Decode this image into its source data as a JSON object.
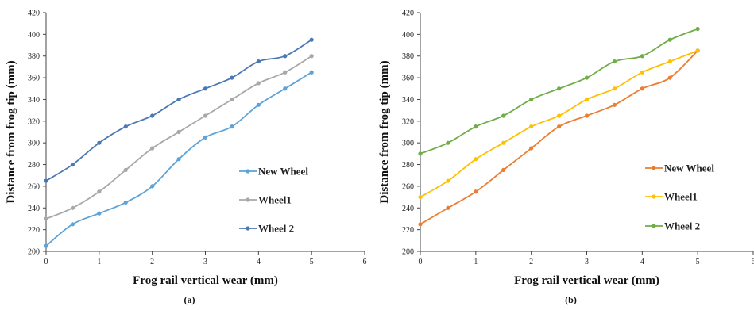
{
  "chart_data": [
    {
      "type": "line",
      "caption": "(a)",
      "xlabel": "Frog rail vertical wear (mm)",
      "ylabel": "Distance from frog tip (mm)",
      "xlim": [
        0,
        6
      ],
      "ylim": [
        200,
        420
      ],
      "x_ticks": [
        "0",
        "1",
        "2",
        "3",
        "4",
        "5",
        "6"
      ],
      "y_ticks": [
        "200",
        "220",
        "240",
        "260",
        "280",
        "300",
        "320",
        "340",
        "360",
        "380",
        "400",
        "420"
      ],
      "grid": false,
      "legend_position": "right",
      "x": [
        0,
        0.5,
        1,
        1.5,
        2,
        2.5,
        3,
        3.5,
        4,
        4.5,
        5
      ],
      "series": [
        {
          "name": "New Wheel",
          "color": "#5ba3d9",
          "values": [
            205,
            225,
            235,
            245,
            260,
            285,
            305,
            315,
            335,
            350,
            365
          ]
        },
        {
          "name": "Wheel1",
          "color": "#a8a8a8",
          "values": [
            230,
            240,
            255,
            275,
            295,
            310,
            325,
            340,
            355,
            365,
            380
          ]
        },
        {
          "name": "Wheel 2",
          "color": "#4a78b5",
          "values": [
            265,
            280,
            300,
            315,
            325,
            340,
            350,
            360,
            375,
            380,
            395
          ]
        }
      ]
    },
    {
      "type": "line",
      "caption": "(b)",
      "xlabel": "Frog rail vertical wear (mm)",
      "ylabel": "Distance from frog tip (mm)",
      "xlim": [
        0,
        6
      ],
      "ylim": [
        200,
        420
      ],
      "x_ticks": [
        "0",
        "1",
        "2",
        "3",
        "4",
        "5",
        "6"
      ],
      "y_ticks": [
        "200",
        "220",
        "240",
        "260",
        "280",
        "300",
        "320",
        "340",
        "360",
        "380",
        "400",
        "420"
      ],
      "grid": false,
      "legend_position": "right",
      "x": [
        0,
        0.5,
        1,
        1.5,
        2,
        2.5,
        3,
        3.5,
        4,
        4.5,
        5
      ],
      "series": [
        {
          "name": "New Wheel",
          "color": "#ed7d31",
          "values": [
            225,
            240,
            255,
            275,
            295,
            315,
            325,
            335,
            350,
            360,
            385
          ]
        },
        {
          "name": "Wheel1",
          "color": "#ffc000",
          "values": [
            250,
            265,
            285,
            300,
            315,
            325,
            340,
            350,
            365,
            375,
            385
          ]
        },
        {
          "name": "Wheel 2",
          "color": "#70ad47",
          "values": [
            290,
            300,
            315,
            325,
            340,
            350,
            360,
            375,
            380,
            395,
            405
          ]
        }
      ]
    }
  ]
}
